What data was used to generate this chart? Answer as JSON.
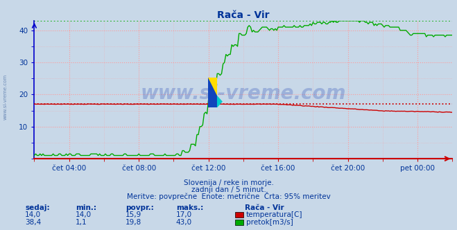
{
  "title": "Rača - Vir",
  "title_color": "#003399",
  "bg_color": "#c8d8e8",
  "plot_bg_color": "#c8d8e8",
  "grid_color_major": "#ff9999",
  "x_ticks_labels": [
    "čet 04:00",
    "čet 08:00",
    "čet 12:00",
    "čet 16:00",
    "čet 20:00",
    "pet 00:00"
  ],
  "x_ticks_pos": [
    4,
    8,
    12,
    16,
    20,
    24
  ],
  "ylim": [
    0,
    43
  ],
  "yticks": [
    10,
    20,
    30,
    40
  ],
  "temp_color": "#cc0000",
  "flow_color": "#00aa00",
  "temp_max_line": 17.0,
  "flow_max_line": 43.0,
  "watermark": "www.si-vreme.com",
  "watermark_color": "#3355bb",
  "watermark_alpha": 0.3,
  "subtitle1": "Slovenija / reke in morje.",
  "subtitle2": "zadnji dan / 5 minut.",
  "subtitle3": "Meritve: povprečne  Enote: metrične  Črta: 95% meritev",
  "subtitle_color": "#003399",
  "legend_title": "Rača - Vir",
  "legend_color": "#003399",
  "legend_items": [
    {
      "label": "temperatura[C]",
      "color": "#cc0000"
    },
    {
      "label": "pretok[m3/s]",
      "color": "#00aa00"
    }
  ],
  "table_headers": [
    "sedaj:",
    "min.:",
    "povpr.:",
    "maks.:"
  ],
  "table_row1": [
    "14,0",
    "14,0",
    "15,9",
    "17,0"
  ],
  "table_row2": [
    "38,4",
    "1,1",
    "19,8",
    "43,0"
  ],
  "border_left_color": "#0000cc",
  "border_bottom_color": "#cc0000",
  "axis_arrow_color": "#cc0000"
}
